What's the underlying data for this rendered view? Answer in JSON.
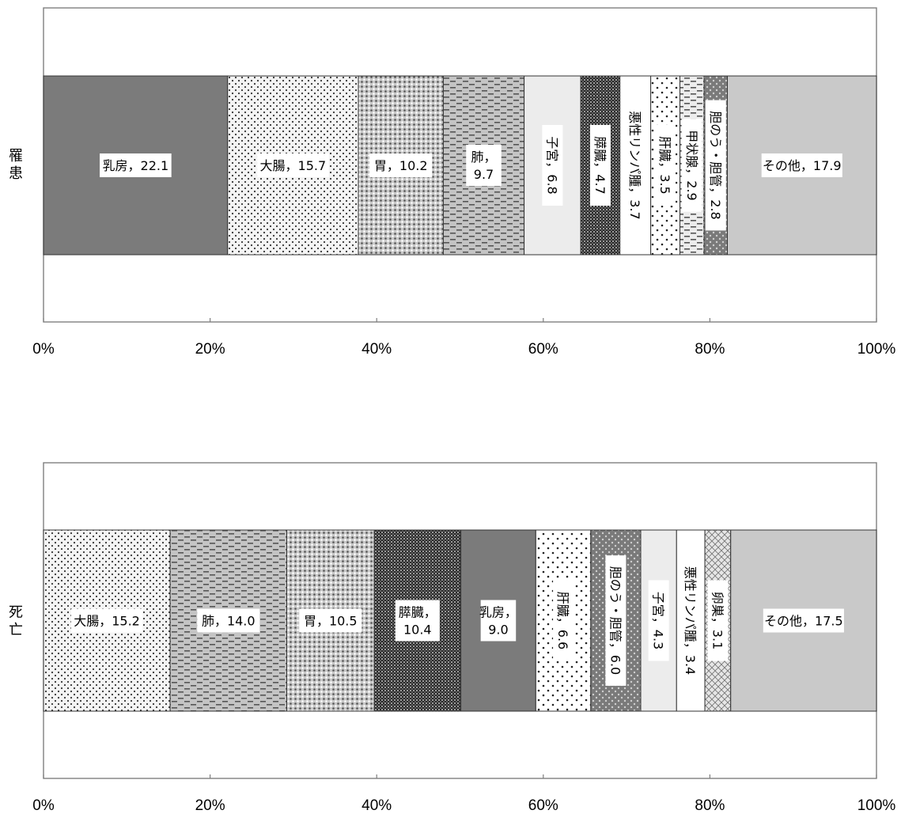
{
  "chart_data": [
    {
      "type": "bar",
      "orientation": "horizontal",
      "stacked": "100%",
      "category": "罹患",
      "x_ticks": [
        "0%",
        "20%",
        "40%",
        "60%",
        "80%",
        "100%"
      ],
      "xlim": [
        0,
        100
      ],
      "segments": [
        {
          "name": "乳房",
          "value": 22.1,
          "label": "乳房，22.1",
          "label_orientation": "horizontal",
          "fill": "#7b7b7b",
          "pattern": "solid"
        },
        {
          "name": "大腸",
          "value": 15.7,
          "label": "大腸，15.7",
          "label_orientation": "horizontal",
          "fill": "#f4f4f4",
          "pattern": "dots-fine"
        },
        {
          "name": "胃",
          "value": 10.2,
          "label": "胃，10.2",
          "label_orientation": "horizontal",
          "fill": "#c8c8c8",
          "pattern": "dots-dense"
        },
        {
          "name": "肺",
          "value": 9.7,
          "label": "肺，\n9.7",
          "label_orientation": "horizontal",
          "fill": "#c4c4c4",
          "pattern": "dashes"
        },
        {
          "name": "子宮",
          "value": 6.8,
          "label": "子宮，6.8",
          "label_orientation": "vertical",
          "fill": "#ececec",
          "pattern": "solid"
        },
        {
          "name": "膵臓",
          "value": 4.7,
          "label": "膵臓，4.7",
          "label_orientation": "vertical",
          "fill": "#5e5e5e",
          "pattern": "checker"
        },
        {
          "name": "悪性リンパ腫",
          "value": 3.7,
          "label": "悪性リンパ腫，3.7",
          "label_orientation": "vertical",
          "fill": "#ffffff",
          "pattern": "solid"
        },
        {
          "name": "肝臓",
          "value": 3.5,
          "label": "肝臓，3.5",
          "label_orientation": "vertical",
          "fill": "#ffffff",
          "pattern": "dots-sparse"
        },
        {
          "name": "甲状腺",
          "value": 2.9,
          "label": "甲状腺，2.9",
          "label_orientation": "vertical",
          "fill": "#ececec",
          "pattern": "dashes"
        },
        {
          "name": "胆のう・胆管",
          "value": 2.8,
          "label": "胆のう・胆管，2.8",
          "label_orientation": "vertical",
          "fill": "#7a7a7a",
          "pattern": "dots-white"
        },
        {
          "name": "その他",
          "value": 17.9,
          "label": "その他，17.9",
          "label_orientation": "horizontal",
          "fill": "#c9c9c9",
          "pattern": "solid"
        }
      ],
      "grid": false,
      "legend": "none"
    },
    {
      "type": "bar",
      "orientation": "horizontal",
      "stacked": "100%",
      "category": "死亡",
      "x_ticks": [
        "0%",
        "20%",
        "40%",
        "60%",
        "80%",
        "100%"
      ],
      "xlim": [
        0,
        100
      ],
      "segments": [
        {
          "name": "大腸",
          "value": 15.2,
          "label": "大腸，15.2",
          "label_orientation": "horizontal",
          "fill": "#f4f4f4",
          "pattern": "dots-fine"
        },
        {
          "name": "肺",
          "value": 14.0,
          "label": "肺，14.0",
          "label_orientation": "horizontal",
          "fill": "#c4c4c4",
          "pattern": "dashes"
        },
        {
          "name": "胃",
          "value": 10.5,
          "label": "胃，10.5",
          "label_orientation": "horizontal",
          "fill": "#c8c8c8",
          "pattern": "dots-dense"
        },
        {
          "name": "膵臓",
          "value": 10.4,
          "label": "膵臓，\n10.4",
          "label_orientation": "horizontal",
          "fill": "#5e5e5e",
          "pattern": "checker"
        },
        {
          "name": "乳房",
          "value": 9.0,
          "label": "乳房，\n9.0",
          "label_orientation": "horizontal",
          "fill": "#7b7b7b",
          "pattern": "solid"
        },
        {
          "name": "肝臓",
          "value": 6.6,
          "label": "肝臓，6.6",
          "label_orientation": "vertical",
          "fill": "#ffffff",
          "pattern": "dots-sparse"
        },
        {
          "name": "胆のう・胆管",
          "value": 6.0,
          "label": "胆のう・胆管，6.0",
          "label_orientation": "vertical",
          "fill": "#7a7a7a",
          "pattern": "dots-white"
        },
        {
          "name": "子宮",
          "value": 4.3,
          "label": "子宮，4.3",
          "label_orientation": "vertical",
          "fill": "#ececec",
          "pattern": "solid"
        },
        {
          "name": "悪性リンパ腫",
          "value": 3.4,
          "label": "悪性リンパ腫，3.4",
          "label_orientation": "vertical",
          "fill": "#ffffff",
          "pattern": "solid"
        },
        {
          "name": "卵巣",
          "value": 3.1,
          "label": "卵巣，3.1",
          "label_orientation": "vertical",
          "fill": "#e6e6e6",
          "pattern": "crosshatch"
        },
        {
          "name": "その他",
          "value": 17.5,
          "label": "その他，17.5",
          "label_orientation": "horizontal",
          "fill": "#c9c9c9",
          "pattern": "solid"
        }
      ],
      "grid": false,
      "legend": "none"
    }
  ]
}
